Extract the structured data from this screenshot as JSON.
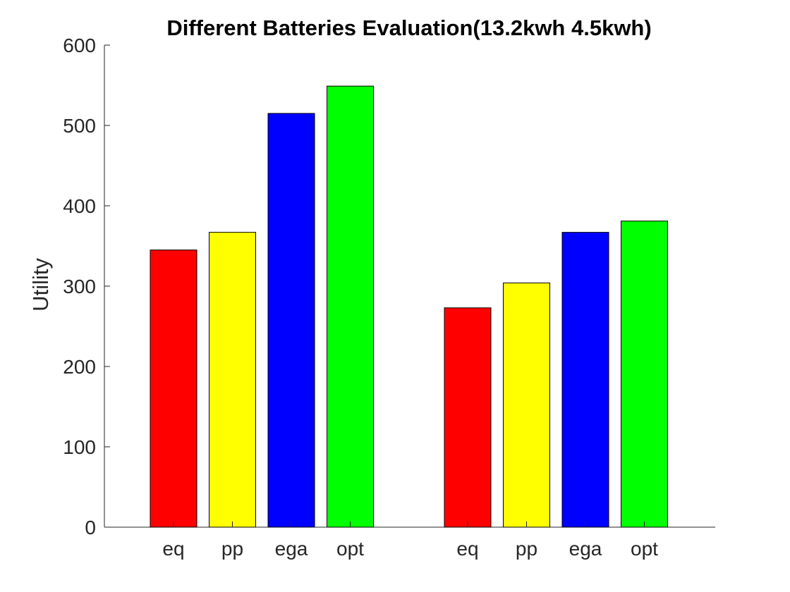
{
  "chart_data": {
    "type": "bar",
    "title": "Different Batteries Evaluation(13.2kwh 4.5kwh)",
    "xlabel": "",
    "ylabel": "Utility",
    "ylim": [
      0,
      600
    ],
    "yticks": [
      0,
      100,
      200,
      300,
      400,
      500,
      600
    ],
    "grid": false,
    "groups": [
      {
        "bars": [
          {
            "label": "eq",
            "value": 345,
            "color": "#ff0000"
          },
          {
            "label": "pp",
            "value": 367,
            "color": "#ffff00"
          },
          {
            "label": "ega",
            "value": 515,
            "color": "#0000ff"
          },
          {
            "label": "opt",
            "value": 549,
            "color": "#00ff00"
          }
        ]
      },
      {
        "bars": [
          {
            "label": "eq",
            "value": 273,
            "color": "#ff0000"
          },
          {
            "label": "pp",
            "value": 304,
            "color": "#ffff00"
          },
          {
            "label": "ega",
            "value": 367,
            "color": "#0000ff"
          },
          {
            "label": "opt",
            "value": 381,
            "color": "#00ff00"
          }
        ]
      }
    ]
  }
}
